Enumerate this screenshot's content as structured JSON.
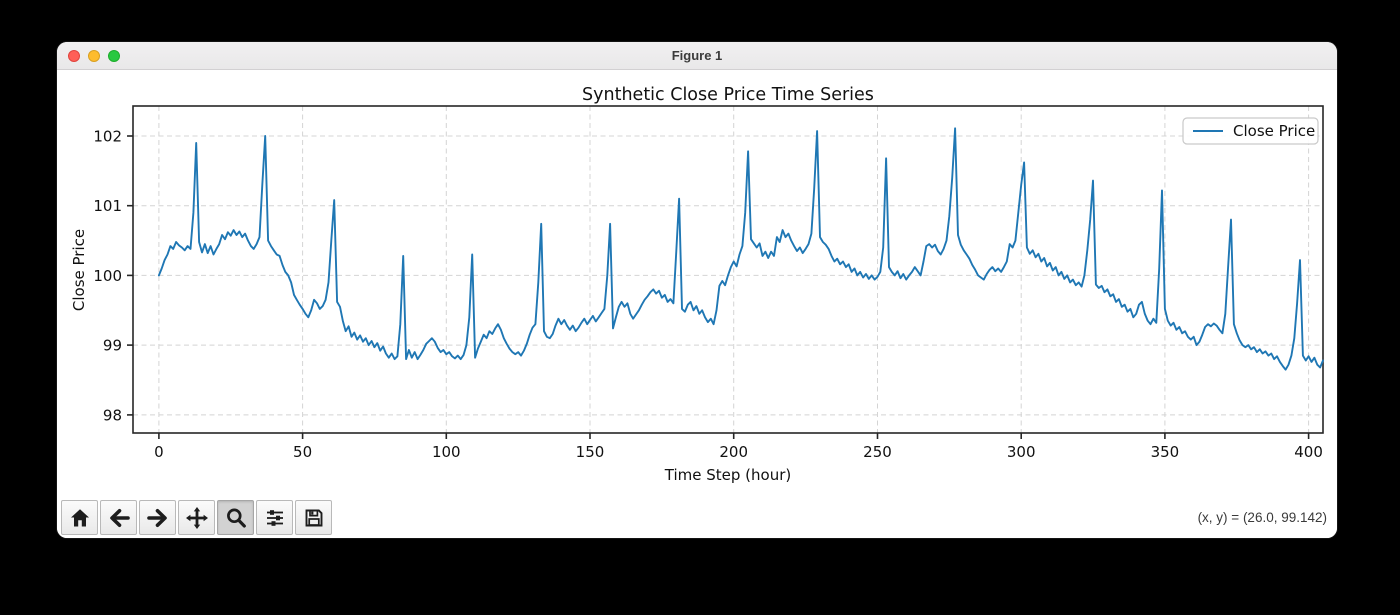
{
  "window": {
    "title": "Figure 1"
  },
  "toolbar": {
    "buttons": [
      {
        "name": "home",
        "icon": "home-icon"
      },
      {
        "name": "back",
        "icon": "back-arrow-icon"
      },
      {
        "name": "forward",
        "icon": "forward-arrow-icon"
      },
      {
        "name": "pan",
        "icon": "pan-move-icon"
      },
      {
        "name": "zoom",
        "icon": "zoom-magnifier-icon"
      },
      {
        "name": "subplots",
        "icon": "sliders-icon"
      },
      {
        "name": "save",
        "icon": "save-floppy-icon"
      }
    ],
    "active_button": "zoom",
    "status": "(x, y) = (26.0, 99.142)"
  },
  "chart_data": {
    "type": "line",
    "title": "Synthetic Close Price Time Series",
    "xlabel": "Time Step (hour)",
    "ylabel": "Close Price",
    "x_ticks": [
      0,
      50,
      100,
      150,
      200,
      250,
      300,
      350,
      400
    ],
    "y_ticks": [
      98,
      99,
      100,
      101,
      102
    ],
    "xlim": [
      -9,
      405
    ],
    "ylim": [
      97.74,
      102.43
    ],
    "grid": true,
    "legend_position": "upper right",
    "line_color": "#1f77b4",
    "series": [
      {
        "name": "Close Price",
        "color": "#1f77b4",
        "x_start": 0,
        "x_step": 1,
        "values": [
          100.0,
          100.1,
          100.22,
          100.3,
          100.42,
          100.38,
          100.48,
          100.43,
          100.4,
          100.36,
          100.42,
          100.38,
          100.9,
          101.9,
          100.48,
          100.33,
          100.45,
          100.32,
          100.42,
          100.3,
          100.38,
          100.45,
          100.58,
          100.52,
          100.62,
          100.57,
          100.65,
          100.58,
          100.63,
          100.55,
          100.6,
          100.5,
          100.42,
          100.38,
          100.45,
          100.55,
          101.3,
          102.0,
          100.5,
          100.42,
          100.36,
          100.3,
          100.28,
          100.15,
          100.05,
          100.0,
          99.9,
          99.72,
          99.65,
          99.58,
          99.52,
          99.45,
          99.4,
          99.5,
          99.65,
          99.6,
          99.52,
          99.56,
          99.65,
          99.9,
          100.5,
          101.08,
          99.62,
          99.55,
          99.35,
          99.2,
          99.27,
          99.12,
          99.18,
          99.08,
          99.14,
          99.05,
          99.1,
          99.0,
          99.06,
          98.97,
          99.03,
          98.92,
          98.98,
          98.88,
          98.82,
          98.88,
          98.8,
          98.84,
          99.3,
          100.28,
          98.8,
          98.93,
          98.82,
          98.9,
          98.8,
          98.86,
          98.93,
          99.02,
          99.06,
          99.1,
          99.05,
          98.96,
          98.9,
          98.93,
          98.87,
          98.9,
          98.84,
          98.81,
          98.85,
          98.8,
          98.86,
          99.0,
          99.4,
          100.3,
          98.82,
          98.95,
          99.05,
          99.15,
          99.1,
          99.2,
          99.16,
          99.24,
          99.3,
          99.22,
          99.1,
          99.02,
          98.95,
          98.9,
          98.87,
          98.9,
          98.85,
          98.92,
          99.02,
          99.15,
          99.25,
          99.3,
          99.9,
          100.74,
          99.2,
          99.12,
          99.1,
          99.16,
          99.28,
          99.38,
          99.3,
          99.36,
          99.28,
          99.22,
          99.28,
          99.2,
          99.25,
          99.32,
          99.38,
          99.3,
          99.36,
          99.42,
          99.34,
          99.4,
          99.46,
          99.52,
          100.0,
          100.74,
          99.24,
          99.4,
          99.55,
          99.62,
          99.55,
          99.6,
          99.45,
          99.38,
          99.44,
          99.5,
          99.58,
          99.65,
          99.7,
          99.76,
          99.8,
          99.74,
          99.78,
          99.68,
          99.72,
          99.62,
          99.66,
          99.6,
          100.35,
          101.1,
          99.52,
          99.48,
          99.58,
          99.62,
          99.5,
          99.56,
          99.45,
          99.5,
          99.4,
          99.33,
          99.38,
          99.3,
          99.5,
          99.85,
          99.92,
          99.86,
          100.0,
          100.12,
          100.2,
          100.13,
          100.3,
          100.42,
          100.9,
          101.78,
          100.52,
          100.46,
          100.4,
          100.46,
          100.28,
          100.34,
          100.25,
          100.34,
          100.28,
          100.55,
          100.48,
          100.65,
          100.55,
          100.6,
          100.5,
          100.42,
          100.35,
          100.4,
          100.32,
          100.38,
          100.45,
          100.6,
          101.25,
          102.07,
          100.55,
          100.48,
          100.44,
          100.38,
          100.28,
          100.2,
          100.24,
          100.16,
          100.2,
          100.12,
          100.16,
          100.05,
          100.1,
          100.0,
          100.05,
          99.97,
          100.02,
          99.95,
          100.0,
          99.94,
          99.98,
          100.05,
          100.4,
          101.68,
          100.12,
          100.05,
          100.0,
          100.06,
          99.96,
          100.02,
          99.94,
          100.0,
          100.05,
          100.12,
          100.06,
          100.0,
          100.2,
          100.42,
          100.45,
          100.4,
          100.44,
          100.35,
          100.3,
          100.38,
          100.5,
          100.85,
          101.4,
          102.11,
          100.58,
          100.44,
          100.36,
          100.3,
          100.24,
          100.15,
          100.08,
          100.0,
          99.97,
          99.94,
          100.02,
          100.08,
          100.12,
          100.06,
          100.1,
          100.05,
          100.12,
          100.2,
          100.45,
          100.4,
          100.5,
          100.9,
          101.3,
          101.62,
          100.4,
          100.31,
          100.36,
          100.26,
          100.31,
          100.2,
          100.25,
          100.13,
          100.18,
          100.07,
          100.12,
          100.0,
          100.05,
          99.95,
          100.0,
          99.9,
          99.94,
          99.86,
          99.9,
          99.84,
          100.0,
          100.36,
          100.8,
          101.36,
          99.87,
          99.82,
          99.85,
          99.76,
          99.8,
          99.7,
          99.73,
          99.62,
          99.66,
          99.55,
          99.58,
          99.48,
          99.52,
          99.4,
          99.45,
          99.58,
          99.62,
          99.45,
          99.35,
          99.3,
          99.38,
          99.32,
          100.1,
          101.22,
          99.52,
          99.35,
          99.28,
          99.32,
          99.22,
          99.26,
          99.17,
          99.2,
          99.12,
          99.08,
          99.12,
          99.0,
          99.05,
          99.15,
          99.26,
          99.3,
          99.27,
          99.31,
          99.28,
          99.22,
          99.17,
          99.45,
          100.12,
          100.8,
          99.3,
          99.17,
          99.07,
          99.0,
          98.97,
          99.0,
          98.94,
          98.97,
          98.9,
          98.94,
          98.88,
          98.91,
          98.85,
          98.88,
          98.8,
          98.84,
          98.76,
          98.7,
          98.65,
          98.72,
          98.85,
          99.1,
          99.6,
          100.22,
          98.85,
          98.78,
          98.84,
          98.76,
          98.82,
          98.72,
          98.68,
          98.78
        ]
      }
    ]
  }
}
